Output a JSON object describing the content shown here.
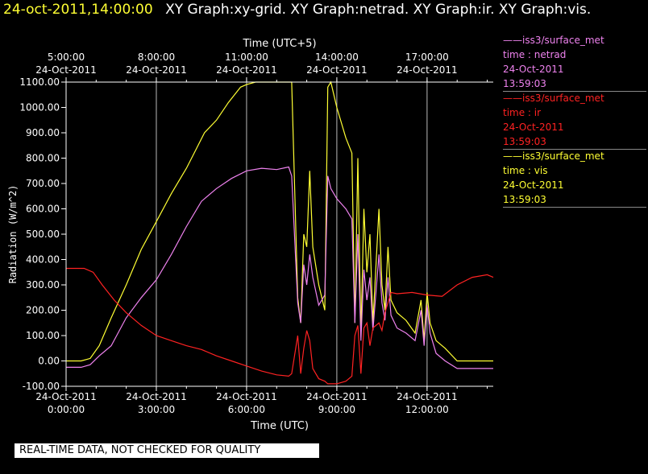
{
  "header": {
    "time": "24-oct-2011,14:00:00",
    "graphs": "XY Graph:xy-grid.  XY Graph:netrad.  XY Graph:ir.  XY Graph:vis."
  },
  "notice": "REAL-TIME DATA, NOT CHECKED FOR QUALITY",
  "legend": [
    {
      "id": "netrad",
      "source": "iss3/surface_met",
      "var": "time : netrad",
      "date": "24-Oct-2011",
      "time": "13:59:03",
      "color": "#ee82ee"
    },
    {
      "id": "ir",
      "source": "iss3/surface_met",
      "var": "time : ir",
      "date": "24-Oct-2011",
      "time": "13:59:03",
      "color": "#ff2222"
    },
    {
      "id": "vis",
      "source": "iss3/surface_met",
      "var": "time : vis",
      "date": "24-Oct-2011",
      "time": "13:59:03",
      "color": "#ffff33"
    }
  ],
  "chart_data": {
    "type": "line",
    "xlabel": "Time (UTC)",
    "x2label": "Time (UTC+5)",
    "ylabel": "Radiation (W/m^2)",
    "xlim_hours": [
      0,
      14.2
    ],
    "ylim": [
      -100,
      1100
    ],
    "grid": true,
    "y_ticks": [
      "-100.00",
      "0.00",
      "100.00",
      "200.00",
      "300.00",
      "400.00",
      "500.00",
      "600.00",
      "700.00",
      "800.00",
      "900.00",
      "1000.00",
      "1100.00"
    ],
    "x_ticks": [
      {
        "h": 0,
        "date": "24-Oct-2011",
        "time": "0:00:00"
      },
      {
        "h": 3,
        "date": "24-Oct-2011",
        "time": "3:00:00"
      },
      {
        "h": 6,
        "date": "24-Oct-2011",
        "time": "6:00:00"
      },
      {
        "h": 9,
        "date": "24-Oct-2011",
        "time": "9:00:00"
      },
      {
        "h": 12,
        "date": "24-Oct-2011",
        "time": "12:00:00"
      }
    ],
    "x2_ticks": [
      {
        "h": 0,
        "time": "5:00:00",
        "date": "24-Oct-2011"
      },
      {
        "h": 3,
        "time": "8:00:00",
        "date": "24-Oct-2011"
      },
      {
        "h": 6,
        "time": "11:00:00",
        "date": "24-Oct-2011"
      },
      {
        "h": 9,
        "time": "14:00:00",
        "date": "24-Oct-2011"
      },
      {
        "h": 12,
        "time": "17:00:00",
        "date": "24-Oct-2011"
      }
    ],
    "series": [
      {
        "name": "vis",
        "color": "#ffff33",
        "points": [
          [
            0,
            0
          ],
          [
            0.5,
            0
          ],
          [
            0.8,
            10
          ],
          [
            1.1,
            60
          ],
          [
            1.5,
            170
          ],
          [
            2,
            300
          ],
          [
            2.5,
            440
          ],
          [
            3,
            550
          ],
          [
            3.5,
            660
          ],
          [
            4,
            760
          ],
          [
            4.3,
            830
          ],
          [
            4.6,
            900
          ],
          [
            5,
            950
          ],
          [
            5.4,
            1020
          ],
          [
            5.8,
            1080
          ],
          [
            6,
            1090
          ],
          [
            6.3,
            1100
          ],
          [
            7.4,
            1100
          ],
          [
            7.5,
            1100
          ],
          [
            7.7,
            250
          ],
          [
            7.8,
            150
          ],
          [
            7.9,
            500
          ],
          [
            8,
            450
          ],
          [
            8.1,
            750
          ],
          [
            8.2,
            450
          ],
          [
            8.4,
            300
          ],
          [
            8.6,
            200
          ],
          [
            8.7,
            1080
          ],
          [
            8.8,
            1100
          ],
          [
            9,
            1000
          ],
          [
            9.3,
            880
          ],
          [
            9.5,
            820
          ],
          [
            9.6,
            150
          ],
          [
            9.7,
            800
          ],
          [
            9.8,
            100
          ],
          [
            9.9,
            600
          ],
          [
            10,
            350
          ],
          [
            10.1,
            500
          ],
          [
            10.2,
            150
          ],
          [
            10.4,
            600
          ],
          [
            10.5,
            300
          ],
          [
            10.6,
            200
          ],
          [
            10.7,
            450
          ],
          [
            10.8,
            240
          ],
          [
            11,
            190
          ],
          [
            11.3,
            160
          ],
          [
            11.6,
            110
          ],
          [
            11.8,
            240
          ],
          [
            11.9,
            80
          ],
          [
            12,
            270
          ],
          [
            12.1,
            150
          ],
          [
            12.3,
            80
          ],
          [
            12.6,
            50
          ],
          [
            13,
            0
          ],
          [
            14.2,
            0
          ]
        ]
      },
      {
        "name": "netrad",
        "color": "#ee82ee",
        "points": [
          [
            0,
            -25
          ],
          [
            0.5,
            -25
          ],
          [
            0.8,
            -15
          ],
          [
            1.1,
            20
          ],
          [
            1.5,
            60
          ],
          [
            2,
            170
          ],
          [
            2.5,
            250
          ],
          [
            3,
            320
          ],
          [
            3.5,
            420
          ],
          [
            4,
            530
          ],
          [
            4.5,
            630
          ],
          [
            5,
            680
          ],
          [
            5.5,
            720
          ],
          [
            6,
            750
          ],
          [
            6.5,
            760
          ],
          [
            7,
            755
          ],
          [
            7.4,
            765
          ],
          [
            7.5,
            730
          ],
          [
            7.7,
            230
          ],
          [
            7.8,
            150
          ],
          [
            7.9,
            380
          ],
          [
            8,
            300
          ],
          [
            8.1,
            420
          ],
          [
            8.2,
            330
          ],
          [
            8.4,
            220
          ],
          [
            8.6,
            260
          ],
          [
            8.7,
            730
          ],
          [
            8.8,
            680
          ],
          [
            9,
            640
          ],
          [
            9.3,
            600
          ],
          [
            9.5,
            560
          ],
          [
            9.6,
            150
          ],
          [
            9.7,
            500
          ],
          [
            9.8,
            80
          ],
          [
            9.9,
            360
          ],
          [
            10,
            240
          ],
          [
            10.1,
            330
          ],
          [
            10.2,
            120
          ],
          [
            10.4,
            420
          ],
          [
            10.5,
            230
          ],
          [
            10.6,
            160
          ],
          [
            10.7,
            330
          ],
          [
            10.8,
            180
          ],
          [
            11,
            130
          ],
          [
            11.3,
            110
          ],
          [
            11.6,
            80
          ],
          [
            11.8,
            200
          ],
          [
            11.9,
            60
          ],
          [
            12,
            220
          ],
          [
            12.1,
            110
          ],
          [
            12.3,
            30
          ],
          [
            12.6,
            0
          ],
          [
            13,
            -30
          ],
          [
            14.2,
            -30
          ]
        ]
      },
      {
        "name": "ir",
        "color": "#ff2222",
        "points": [
          [
            0,
            365
          ],
          [
            0.6,
            365
          ],
          [
            0.9,
            350
          ],
          [
            1.2,
            300
          ],
          [
            1.6,
            240
          ],
          [
            2,
            190
          ],
          [
            2.5,
            140
          ],
          [
            3,
            100
          ],
          [
            3.5,
            80
          ],
          [
            4,
            60
          ],
          [
            4.5,
            45
          ],
          [
            5,
            20
          ],
          [
            5.5,
            0
          ],
          [
            6,
            -20
          ],
          [
            6.5,
            -40
          ],
          [
            7,
            -55
          ],
          [
            7.4,
            -60
          ],
          [
            7.5,
            -50
          ],
          [
            7.7,
            100
          ],
          [
            7.8,
            -50
          ],
          [
            7.9,
            50
          ],
          [
            8,
            120
          ],
          [
            8.1,
            80
          ],
          [
            8.2,
            -30
          ],
          [
            8.4,
            -70
          ],
          [
            8.6,
            -80
          ],
          [
            8.7,
            -90
          ],
          [
            9,
            -90
          ],
          [
            9.3,
            -80
          ],
          [
            9.5,
            -60
          ],
          [
            9.6,
            100
          ],
          [
            9.7,
            140
          ],
          [
            9.8,
            -50
          ],
          [
            9.9,
            130
          ],
          [
            10,
            150
          ],
          [
            10.1,
            60
          ],
          [
            10.2,
            130
          ],
          [
            10.4,
            150
          ],
          [
            10.5,
            120
          ],
          [
            10.6,
            190
          ],
          [
            10.7,
            230
          ],
          [
            10.8,
            270
          ],
          [
            11,
            265
          ],
          [
            11.5,
            270
          ],
          [
            12,
            260
          ],
          [
            12.5,
            255
          ],
          [
            13,
            300
          ],
          [
            13.5,
            330
          ],
          [
            14,
            340
          ],
          [
            14.2,
            330
          ]
        ]
      }
    ]
  }
}
